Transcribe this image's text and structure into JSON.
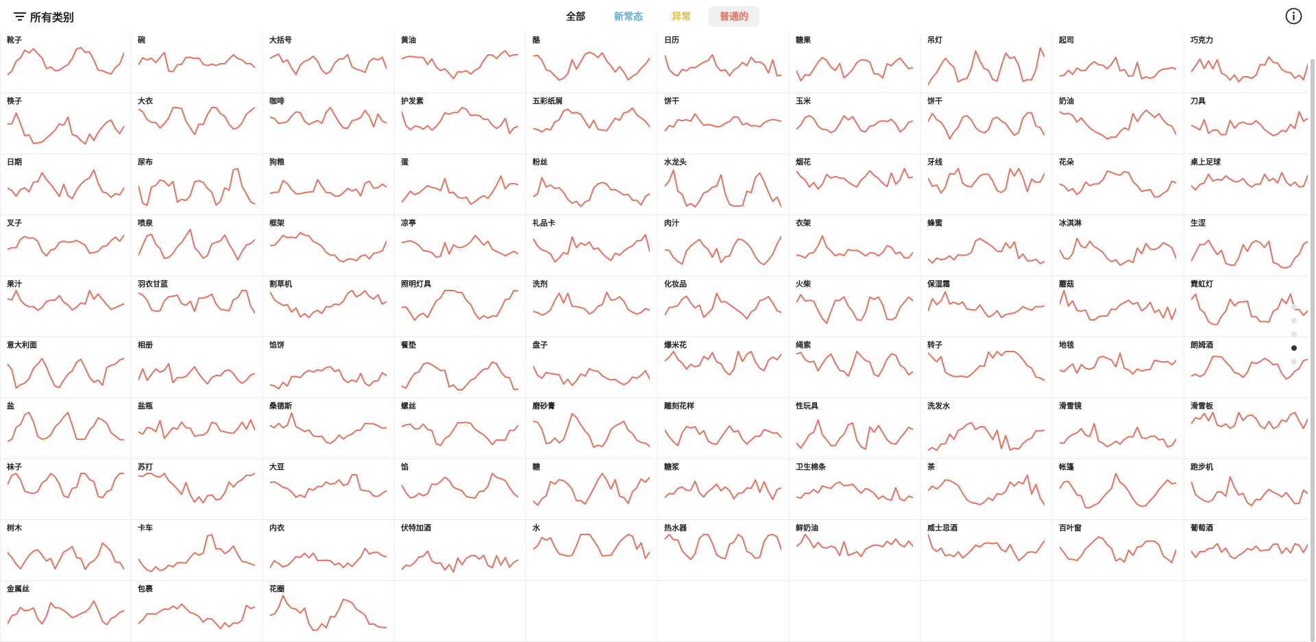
{
  "header": {
    "filter_label": "所有类别",
    "filter_icon": "filter-lines-icon",
    "info_icon": "info-circle-icon"
  },
  "tabs": [
    {
      "label": "全部",
      "color": "#222222",
      "active": false
    },
    {
      "label": "新常态",
      "color": "#5fb0d9",
      "active": false
    },
    {
      "label": "异常",
      "color": "#e0c13a",
      "active": false
    },
    {
      "label": "普通的",
      "color": "#e86f5e",
      "active": true
    }
  ],
  "line_color": "#e86f5e",
  "categories": [
    {
      "label": "靴子"
    },
    {
      "label": "碗"
    },
    {
      "label": "大括号"
    },
    {
      "label": "黄油"
    },
    {
      "label": "酪"
    },
    {
      "label": "日历"
    },
    {
      "label": "糖果"
    },
    {
      "label": "吊灯"
    },
    {
      "label": "起司"
    },
    {
      "label": "巧克力"
    },
    {
      "label": "筷子"
    },
    {
      "label": "大衣"
    },
    {
      "label": "咖啡"
    },
    {
      "label": "护发素"
    },
    {
      "label": "五彩纸屑"
    },
    {
      "label": "饼干"
    },
    {
      "label": "玉米"
    },
    {
      "label": "饼干"
    },
    {
      "label": "奶油"
    },
    {
      "label": "刀具"
    },
    {
      "label": "日期"
    },
    {
      "label": "尿布"
    },
    {
      "label": "狗粮"
    },
    {
      "label": "蛋"
    },
    {
      "label": "粉丝"
    },
    {
      "label": "水龙头"
    },
    {
      "label": "烟花"
    },
    {
      "label": "牙线"
    },
    {
      "label": "花朵"
    },
    {
      "label": "桌上足球"
    },
    {
      "label": "叉子"
    },
    {
      "label": "喷泉"
    },
    {
      "label": "框架"
    },
    {
      "label": "凉亭"
    },
    {
      "label": "礼品卡"
    },
    {
      "label": "肉汁"
    },
    {
      "label": "衣架"
    },
    {
      "label": "蜂蜜"
    },
    {
      "label": "冰淇淋"
    },
    {
      "label": "生涩"
    },
    {
      "label": "果汁"
    },
    {
      "label": "羽衣甘蓝"
    },
    {
      "label": "割草机"
    },
    {
      "label": "照明灯具"
    },
    {
      "label": "洗剂"
    },
    {
      "label": "化妆品"
    },
    {
      "label": "火柴"
    },
    {
      "label": "保湿霜"
    },
    {
      "label": "蘑菇"
    },
    {
      "label": "霓虹灯"
    },
    {
      "label": "意大利面"
    },
    {
      "label": "相册"
    },
    {
      "label": "馅饼"
    },
    {
      "label": "餐垫"
    },
    {
      "label": "盘子"
    },
    {
      "label": "爆米花"
    },
    {
      "label": "绳索"
    },
    {
      "label": "转子"
    },
    {
      "label": "地毯"
    },
    {
      "label": "朗姆酒"
    },
    {
      "label": "盐"
    },
    {
      "label": "盐瓶"
    },
    {
      "label": "桑德斯"
    },
    {
      "label": "螺丝"
    },
    {
      "label": "磨砂膏"
    },
    {
      "label": "雕刻花样"
    },
    {
      "label": "性玩具"
    },
    {
      "label": "洗发水"
    },
    {
      "label": "滑雪镜"
    },
    {
      "label": "滑雪板"
    },
    {
      "label": "袜子"
    },
    {
      "label": "苏打"
    },
    {
      "label": "大豆"
    },
    {
      "label": "馅"
    },
    {
      "label": "糖"
    },
    {
      "label": "糖浆"
    },
    {
      "label": "卫生棉条"
    },
    {
      "label": "茶"
    },
    {
      "label": "帐篷"
    },
    {
      "label": "跑步机"
    },
    {
      "label": "树木"
    },
    {
      "label": "卡车"
    },
    {
      "label": "内衣"
    },
    {
      "label": "伏特加酒"
    },
    {
      "label": "水"
    },
    {
      "label": "热水器"
    },
    {
      "label": "鲜奶油"
    },
    {
      "label": "威士忌酒"
    },
    {
      "label": "百叶窗"
    },
    {
      "label": "葡萄酒"
    },
    {
      "label": "金属丝"
    },
    {
      "label": "包裹"
    },
    {
      "label": "花圈"
    }
  ],
  "page_dots": {
    "count": 5,
    "active_index": 3
  }
}
